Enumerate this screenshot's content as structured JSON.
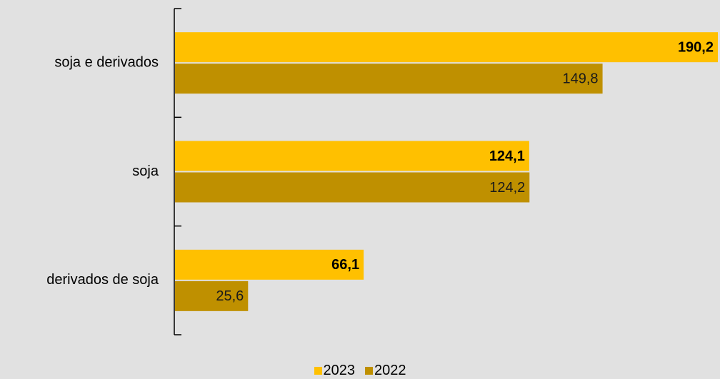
{
  "chart_data": {
    "type": "bar",
    "orientation": "horizontal",
    "categories": [
      "soja e derivados",
      "soja",
      "derivados de soja"
    ],
    "series": [
      {
        "name": "2023",
        "values": [
          190.2,
          124.1,
          66.1
        ],
        "labels": [
          "190,2",
          "124,1",
          "66,1"
        ],
        "color": "#ffc000",
        "label_bold": true
      },
      {
        "name": "2022",
        "values": [
          149.8,
          124.2,
          25.6
        ],
        "labels": [
          "149,8",
          "124,2",
          "25,6"
        ],
        "color": "#bf9000",
        "label_bold": false
      }
    ],
    "xlim": [
      0,
      190.2
    ],
    "legend_position": "bottom",
    "grid": false
  }
}
